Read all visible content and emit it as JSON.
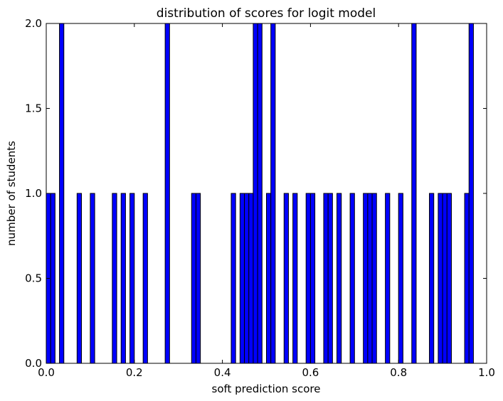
{
  "chart_data": {
    "type": "bar",
    "title": "distribution of scores for logit model",
    "xlabel": "soft prediction score",
    "ylabel": "number of students",
    "xlim": [
      0.0,
      1.0
    ],
    "ylim": [
      0.0,
      2.0
    ],
    "grid": false,
    "bar_color": "#0000ff",
    "bin_width": 0.01,
    "x_ticks": [
      "0.0",
      "0.2",
      "0.4",
      "0.6",
      "0.8",
      "1.0"
    ],
    "y_ticks": [
      "0.0",
      "0.5",
      "1.0",
      "1.5",
      "2.0"
    ],
    "bins": [
      {
        "x": 0.0,
        "count": 1
      },
      {
        "x": 0.01,
        "count": 1
      },
      {
        "x": 0.03,
        "count": 2
      },
      {
        "x": 0.07,
        "count": 1
      },
      {
        "x": 0.1,
        "count": 1
      },
      {
        "x": 0.15,
        "count": 1
      },
      {
        "x": 0.17,
        "count": 1
      },
      {
        "x": 0.19,
        "count": 1
      },
      {
        "x": 0.22,
        "count": 1
      },
      {
        "x": 0.27,
        "count": 2
      },
      {
        "x": 0.33,
        "count": 1
      },
      {
        "x": 0.34,
        "count": 1
      },
      {
        "x": 0.42,
        "count": 1
      },
      {
        "x": 0.44,
        "count": 1
      },
      {
        "x": 0.45,
        "count": 1
      },
      {
        "x": 0.46,
        "count": 1
      },
      {
        "x": 0.47,
        "count": 2
      },
      {
        "x": 0.48,
        "count": 2
      },
      {
        "x": 0.5,
        "count": 1
      },
      {
        "x": 0.51,
        "count": 2
      },
      {
        "x": 0.54,
        "count": 1
      },
      {
        "x": 0.56,
        "count": 1
      },
      {
        "x": 0.59,
        "count": 1
      },
      {
        "x": 0.6,
        "count": 1
      },
      {
        "x": 0.63,
        "count": 1
      },
      {
        "x": 0.64,
        "count": 1
      },
      {
        "x": 0.66,
        "count": 1
      },
      {
        "x": 0.69,
        "count": 1
      },
      {
        "x": 0.72,
        "count": 1
      },
      {
        "x": 0.73,
        "count": 1
      },
      {
        "x": 0.74,
        "count": 1
      },
      {
        "x": 0.77,
        "count": 1
      },
      {
        "x": 0.8,
        "count": 1
      },
      {
        "x": 0.83,
        "count": 2
      },
      {
        "x": 0.87,
        "count": 1
      },
      {
        "x": 0.89,
        "count": 1
      },
      {
        "x": 0.9,
        "count": 1
      },
      {
        "x": 0.91,
        "count": 1
      },
      {
        "x": 0.95,
        "count": 1
      },
      {
        "x": 0.96,
        "count": 2
      }
    ]
  }
}
